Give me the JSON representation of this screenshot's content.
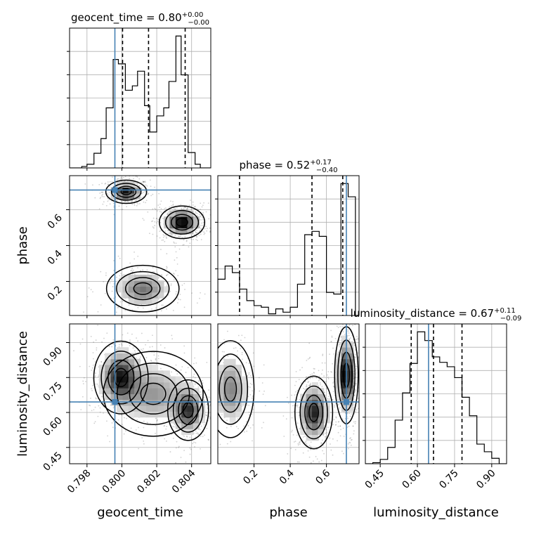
{
  "chart_data": {
    "type": "corner",
    "parameters": [
      "geocent_time",
      "phase",
      "luminosity_distance"
    ],
    "truths": {
      "geocent_time": 0.7996,
      "phase": 0.71,
      "luminosity_distance": 0.645
    },
    "panels": {
      "geocent_time": {
        "title_main": "geocent_time = 0.80",
        "title_sup": "+0.00",
        "title_sub": "−0.00",
        "xlim": [
          0.797,
          0.8051
        ],
        "xticks": [
          0.798,
          0.8,
          0.802,
          0.804
        ],
        "xticklabels": [
          "0.798",
          "0.800",
          "0.802",
          "0.804"
        ],
        "quantiles": [
          0.80004,
          0.80153,
          0.80363
        ],
        "hist_edges": [
          0.797,
          0.7973,
          0.7977,
          0.798,
          0.7984,
          0.7988,
          0.7991,
          0.7995,
          0.7998,
          0.8002,
          0.8006,
          0.8009,
          0.8013,
          0.8016,
          0.802,
          0.8024,
          0.8027,
          0.8031,
          0.8034,
          0.8038,
          0.8042,
          0.8045,
          0.8049,
          0.8051
        ],
        "hist_counts": [
          0,
          0,
          2,
          5,
          20,
          40,
          82,
          148,
          142,
          106,
          112,
          132,
          85,
          49,
          71,
          82,
          118,
          180,
          127,
          21,
          5,
          0,
          0
        ]
      },
      "phase": {
        "title_main": "phase = 0.52",
        "title_sup": "+0.17",
        "title_sub": "−0.40",
        "xlim": [
          0.0,
          0.78
        ],
        "xticks": [
          0.2,
          0.4,
          0.6
        ],
        "xticklabels": [
          "0.2",
          "0.4",
          "0.6"
        ],
        "quantiles": [
          0.12,
          0.52,
          0.69
        ],
        "hist_edges": [
          0.0,
          0.04,
          0.08,
          0.12,
          0.16,
          0.2,
          0.24,
          0.28,
          0.32,
          0.36,
          0.4,
          0.44,
          0.48,
          0.52,
          0.56,
          0.6,
          0.64,
          0.68,
          0.72,
          0.76,
          0.78
        ],
        "hist_counts": [
          22,
          30,
          26,
          16,
          9,
          6,
          5,
          1,
          4,
          2,
          5,
          19,
          49,
          51,
          48,
          14,
          13,
          80,
          72,
          0
        ]
      },
      "luminosity_distance": {
        "title_main": "luminosity_distance = 0.67",
        "title_sup": "+0.11",
        "title_sub": "−0.09",
        "xlim": [
          0.39,
          0.96
        ],
        "xticks": [
          0.45,
          0.6,
          0.75,
          0.9
        ],
        "xticklabels": [
          "0.45",
          "0.60",
          "0.75",
          "0.90"
        ],
        "quantiles": [
          0.575,
          0.665,
          0.78
        ],
        "hist_edges": [
          0.39,
          0.42,
          0.45,
          0.48,
          0.51,
          0.54,
          0.57,
          0.6,
          0.63,
          0.66,
          0.69,
          0.72,
          0.75,
          0.78,
          0.81,
          0.84,
          0.87,
          0.9,
          0.93,
          0.96
        ],
        "hist_counts": [
          0,
          1,
          4,
          15,
          40,
          65,
          92,
          121,
          113,
          98,
          93,
          89,
          79,
          61,
          44,
          18,
          11,
          5,
          0
        ]
      }
    },
    "yticks": {
      "phase": {
        "values": [
          0.2,
          0.4,
          0.6
        ],
        "labels": [
          "0.2",
          "0.4",
          "0.6"
        ],
        "ylim": [
          0.01,
          0.79
        ]
      },
      "luminosity_distance": {
        "values": [
          0.45,
          0.6,
          0.75,
          0.9
        ],
        "labels": [
          "0.45",
          "0.60",
          "0.75",
          "0.90"
        ],
        "ylim": [
          0.38,
          0.98
        ]
      }
    },
    "axis_labels": {
      "geocent_time": "geocent_time",
      "phase": "phase",
      "luminosity_distance": "luminosity_distance"
    },
    "grid": true,
    "contour_levels": 4,
    "density_modes": [
      {
        "pair": [
          "geocent_time",
          "phase"
        ],
        "modes": [
          {
            "x": 0.80025,
            "y": 0.7,
            "sx": 0.00045,
            "sy": 0.025,
            "w": 1.0
          },
          {
            "x": 0.80345,
            "y": 0.53,
            "sx": 0.0005,
            "sy": 0.035,
            "w": 1.1
          },
          {
            "x": 0.8012,
            "y": 0.16,
            "sx": 0.0008,
            "sy": 0.05,
            "w": 0.55
          }
        ]
      },
      {
        "pair": [
          "geocent_time",
          "luminosity_distance"
        ],
        "modes": [
          {
            "x": 0.79995,
            "y": 0.75,
            "sx": 0.0006,
            "sy": 0.06,
            "w": 1.0
          },
          {
            "x": 0.8038,
            "y": 0.61,
            "sx": 0.00045,
            "sy": 0.05,
            "w": 0.9
          },
          {
            "x": 0.8018,
            "y": 0.68,
            "sx": 0.0011,
            "sy": 0.07,
            "w": 0.45
          }
        ]
      },
      {
        "pair": [
          "phase",
          "luminosity_distance"
        ],
        "modes": [
          {
            "x": 0.07,
            "y": 0.7,
            "sx": 0.05,
            "sy": 0.08,
            "w": 0.55
          },
          {
            "x": 0.53,
            "y": 0.6,
            "sx": 0.04,
            "sy": 0.06,
            "w": 1.0
          },
          {
            "x": 0.71,
            "y": 0.76,
            "sx": 0.025,
            "sy": 0.08,
            "w": 1.2
          }
        ]
      }
    ],
    "colors": {
      "truth": "#4682b4",
      "line": "#000000",
      "grid": "#b0b0b0"
    }
  }
}
